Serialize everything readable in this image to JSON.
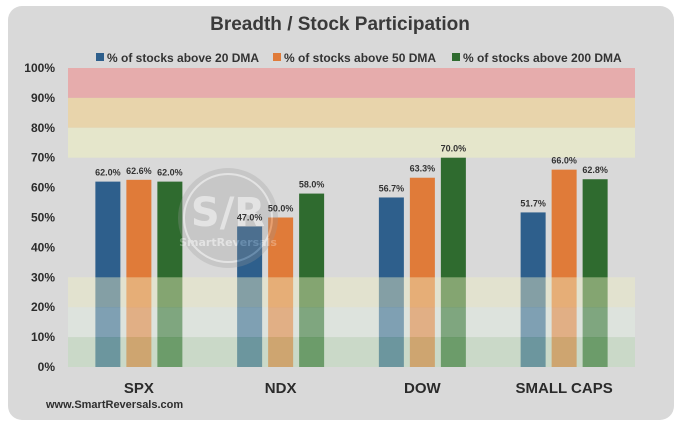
{
  "chart_data": {
    "type": "bar",
    "title": "Breadth / Stock Participation",
    "categories": [
      "SPX",
      "NDX",
      "DOW",
      "SMALL CAPS"
    ],
    "series": [
      {
        "name": "% of stocks above 20 DMA",
        "values": [
          62.0,
          47.0,
          56.7,
          51.7
        ],
        "labels": [
          "62.0%",
          "47.0%",
          "56.7%",
          "51.7%"
        ],
        "color": "#2e5f8c"
      },
      {
        "name": "% of stocks above 50 DMA",
        "values": [
          62.6,
          50.0,
          63.3,
          66.0
        ],
        "labels": [
          "62.6%",
          "50.0%",
          "63.3%",
          "66.0%"
        ],
        "color": "#e07b39"
      },
      {
        "name": "% of stocks above 200 DMA",
        "values": [
          62.0,
          58.0,
          70.0,
          62.8
        ],
        "labels": [
          "62.0%",
          "58.0%",
          "70.0%",
          "62.8%"
        ],
        "color": "#2f6b2f"
      }
    ],
    "yticks": [
      "0%",
      "10%",
      "20%",
      "30%",
      "40%",
      "50%",
      "60%",
      "70%",
      "80%",
      "90%",
      "100%"
    ],
    "ylim": [
      0,
      100
    ],
    "legend_position": "top",
    "zones": [
      {
        "from": 90,
        "to": 100,
        "color": "#e8a3a3",
        "opacity": 0.85
      },
      {
        "from": 80,
        "to": 90,
        "color": "#ead2a2",
        "opacity": 0.85
      },
      {
        "from": 70,
        "to": 80,
        "color": "#e6e8c8",
        "opacity": 0.85
      },
      {
        "from": 20,
        "to": 30,
        "color": "#eeeec4",
        "opacity": 0.45
      },
      {
        "from": 10,
        "to": 20,
        "color": "#e2f0e2",
        "opacity": 0.45
      },
      {
        "from": 0,
        "to": 10,
        "color": "#b9dab4",
        "opacity": 0.45
      }
    ]
  },
  "watermark": {
    "mark": "S/R",
    "name": "SmartReversals"
  },
  "footer": "www.SmartReversals.com"
}
